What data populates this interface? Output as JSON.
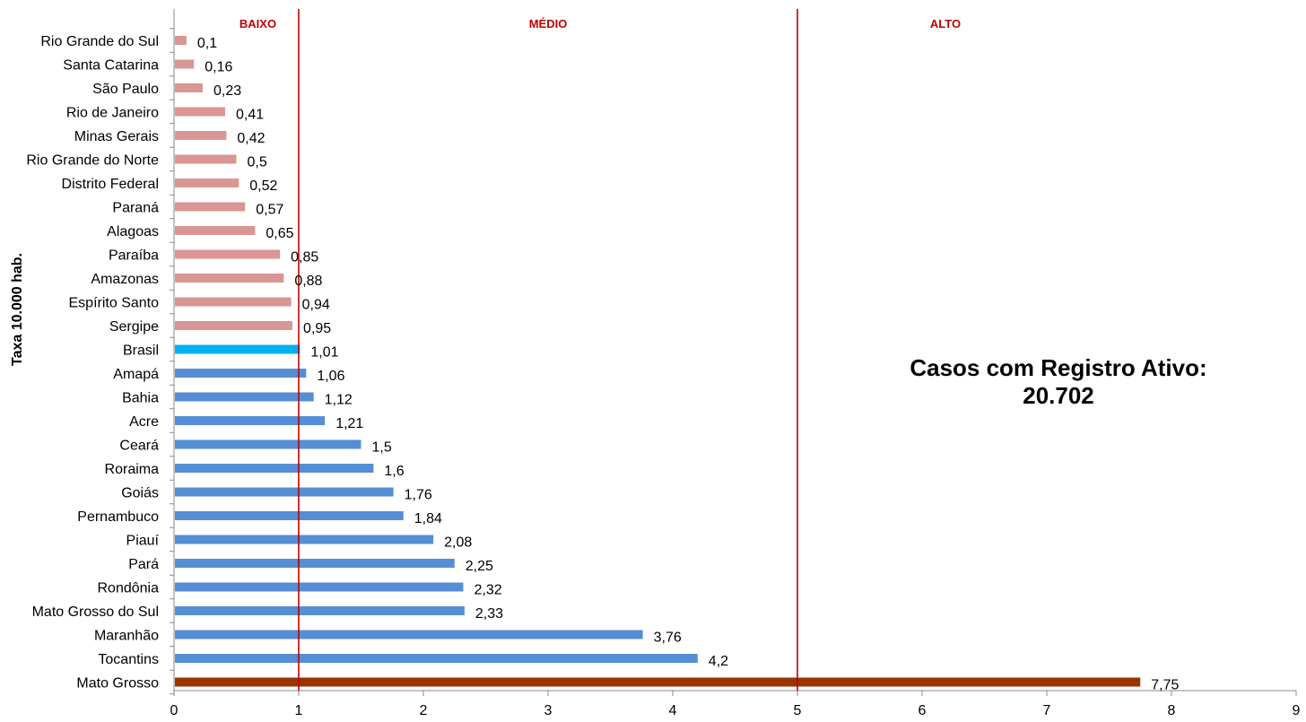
{
  "chart_data": {
    "type": "bar",
    "orientation": "horizontal",
    "ylabel": "Taxa 10.000 hab.",
    "xlim": [
      0,
      9
    ],
    "x_ticks": [
      "0",
      "1",
      "2",
      "3",
      "4",
      "5",
      "6",
      "7",
      "8",
      "9"
    ],
    "grid": false,
    "categories": [
      "Rio Grande do Sul",
      "Santa Catarina",
      "São Paulo",
      "Rio de Janeiro",
      "Minas Gerais",
      "Rio Grande do Norte",
      "Distrito Federal",
      "Paraná",
      "Alagoas",
      "Paraíba",
      "Amazonas",
      "Espírito Santo",
      "Sergipe",
      "Brasil",
      "Amapá",
      "Bahia",
      "Acre",
      "Ceará",
      "Roraima",
      "Goiás",
      "Pernambuco",
      "Piauí",
      "Pará",
      "Rondônia",
      "Mato Grosso do Sul",
      "Maranhão",
      "Tocantins",
      "Mato Grosso"
    ],
    "values": [
      0.1,
      0.16,
      0.23,
      0.41,
      0.42,
      0.5,
      0.52,
      0.57,
      0.65,
      0.85,
      0.88,
      0.94,
      0.95,
      1.01,
      1.06,
      1.12,
      1.21,
      1.5,
      1.6,
      1.76,
      1.84,
      2.08,
      2.25,
      2.32,
      2.33,
      3.76,
      4.2,
      7.75
    ],
    "value_labels": [
      "0,1",
      "0,16",
      "0,23",
      "0,41",
      "0,42",
      "0,5",
      "0,52",
      "0,57",
      "0,65",
      "0,85",
      "0,88",
      "0,94",
      "0,95",
      "1,01",
      "1,06",
      "1,12",
      "1,21",
      "1,5",
      "1,6",
      "1,76",
      "1,84",
      "2,08",
      "2,25",
      "2,32",
      "2,33",
      "3,76",
      "4,2",
      "7,75"
    ],
    "bar_colors": {
      "low": "#d99694",
      "national": "#00b0f0",
      "medium": "#558ed5",
      "highest": "#993300"
    },
    "thresholds": [
      {
        "value": 1,
        "color": "#c00000"
      },
      {
        "value": 5,
        "color": "#c00000"
      }
    ],
    "zones": [
      {
        "label": "BAIXO",
        "from": 0,
        "to": 1
      },
      {
        "label": "MÉDIO",
        "from": 1,
        "to": 5
      },
      {
        "label": "ALTO",
        "from": 5,
        "to": 9
      }
    ],
    "annotation": [
      "Casos com Registro Ativo:",
      "20.702"
    ]
  }
}
